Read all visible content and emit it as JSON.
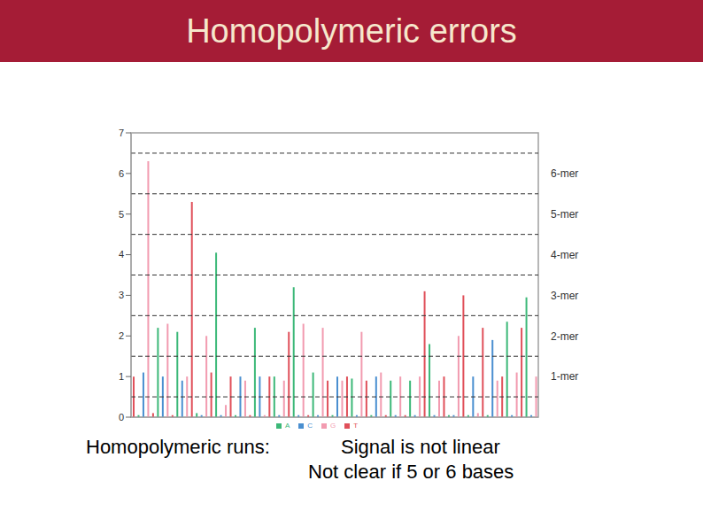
{
  "chart_data": {
    "type": "bar",
    "title": "Homopolymeric errors",
    "tick_labels": "y",
    "grid": false,
    "legend": "bottom",
    "ylim": [
      0,
      7
    ],
    "yticks": [
      0,
      1,
      2,
      3,
      4,
      5,
      6,
      7
    ],
    "bands": [
      {
        "label": "1-mer",
        "y1": 0.5,
        "y2": 1.5
      },
      {
        "label": "2-mer",
        "y1": 1.5,
        "y2": 2.5
      },
      {
        "label": "3-mer",
        "y1": 2.5,
        "y2": 3.5
      },
      {
        "label": "4-mer",
        "y1": 3.5,
        "y2": 4.5
      },
      {
        "label": "5-mer",
        "y1": 4.5,
        "y2": 5.5
      },
      {
        "label": "6-mer",
        "y1": 5.5,
        "y2": 6.5
      }
    ],
    "annotations": [
      "Homopolymeric runs:",
      "Signal is not linear",
      "Not clear if 5 or 6 bases"
    ],
    "series": [
      {
        "name": "T",
        "color": "#e0505a",
        "values": [
          1.0,
          null,
          null,
          null,
          0.1,
          null,
          null,
          null,
          0.05,
          null,
          null,
          null,
          5.3,
          null,
          null,
          null,
          1.1,
          null,
          null,
          null,
          1.0,
          null,
          null,
          null,
          0.05,
          null,
          null,
          null,
          1.0,
          null,
          null,
          null,
          2.1,
          null,
          null,
          null,
          0.05,
          null,
          null,
          null,
          0.9,
          null,
          null,
          null,
          1.0,
          null,
          null,
          null,
          0.9,
          null,
          null,
          null,
          0.05,
          null,
          null,
          null,
          0.05,
          null,
          null,
          null,
          3.1,
          null,
          null,
          null,
          1.0,
          null,
          null,
          null,
          3.0,
          null,
          null,
          null,
          2.2,
          null,
          null,
          null,
          1.0,
          null,
          null,
          null,
          2.2,
          null,
          null,
          null
        ]
      },
      {
        "name": "A",
        "color": "#3cb878",
        "values": [
          null,
          0.05,
          null,
          null,
          null,
          2.2,
          null,
          null,
          null,
          2.1,
          null,
          null,
          null,
          0.1,
          null,
          null,
          null,
          4.05,
          null,
          null,
          null,
          0.05,
          null,
          null,
          null,
          2.2,
          null,
          null,
          null,
          1.0,
          null,
          null,
          null,
          3.2,
          null,
          null,
          null,
          1.1,
          null,
          null,
          null,
          0.05,
          null,
          null,
          null,
          0.95,
          null,
          null,
          null,
          0.05,
          null,
          null,
          null,
          0.9,
          null,
          null,
          null,
          0.9,
          null,
          null,
          null,
          1.8,
          null,
          null,
          null,
          0.05,
          null,
          null,
          null,
          0.05,
          null,
          null,
          null,
          0.05,
          null,
          null,
          null,
          2.35,
          null,
          null,
          null,
          2.95,
          null,
          null
        ]
      },
      {
        "name": "C",
        "color": "#4a8fd0",
        "values": [
          null,
          null,
          1.1,
          null,
          null,
          null,
          1.0,
          null,
          null,
          null,
          0.9,
          null,
          null,
          null,
          0.05,
          null,
          null,
          null,
          0.05,
          null,
          null,
          null,
          1.0,
          null,
          null,
          null,
          1.0,
          null,
          null,
          null,
          0.05,
          null,
          null,
          null,
          0.05,
          null,
          null,
          null,
          0.05,
          null,
          null,
          null,
          1.0,
          null,
          null,
          null,
          0.05,
          null,
          null,
          null,
          1.0,
          null,
          null,
          null,
          0.05,
          null,
          null,
          null,
          0.05,
          null,
          null,
          null,
          0.05,
          null,
          null,
          null,
          0.05,
          null,
          null,
          null,
          1.0,
          null,
          null,
          null,
          1.9,
          null,
          null,
          null,
          0.05,
          null,
          null,
          null,
          0.05,
          null
        ]
      },
      {
        "name": "G",
        "color": "#f29bb0",
        "values": [
          null,
          null,
          null,
          6.3,
          null,
          null,
          null,
          2.3,
          null,
          null,
          null,
          1.0,
          null,
          null,
          null,
          2.0,
          null,
          null,
          null,
          0.3,
          null,
          null,
          null,
          0.9,
          null,
          null,
          null,
          0.05,
          null,
          null,
          null,
          0.9,
          null,
          null,
          null,
          2.3,
          null,
          null,
          null,
          2.2,
          null,
          null,
          null,
          0.9,
          null,
          null,
          null,
          2.1,
          null,
          null,
          null,
          1.1,
          null,
          null,
          null,
          1.0,
          null,
          null,
          null,
          1.0,
          null,
          null,
          null,
          0.9,
          null,
          null,
          null,
          2.0,
          null,
          null,
          null,
          0.1,
          null,
          null,
          null,
          0.9,
          null,
          null,
          null,
          1.1,
          null,
          null,
          null,
          1.0
        ]
      }
    ]
  }
}
